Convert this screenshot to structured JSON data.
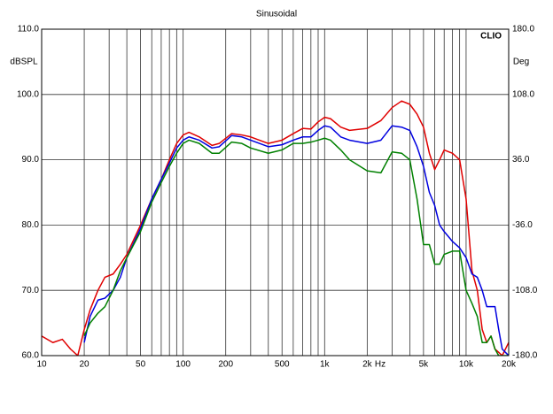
{
  "chart_data": {
    "type": "line",
    "title": "Sinusoidal",
    "ylabel": "dBSPL",
    "y2label": "Deg",
    "xlabel": "Hz",
    "brand": "CLIO",
    "xscale": "log",
    "xlim": [
      10,
      20000
    ],
    "ylim": [
      60,
      110
    ],
    "y2lim": [
      -180,
      180
    ],
    "grid": true,
    "xticks": [
      10,
      20,
      50,
      100,
      200,
      500,
      {
        "value": 1000,
        "label": "1k"
      },
      {
        "value": 2000,
        "label": "2k"
      },
      {
        "value": 5000,
        "label": "5k"
      },
      {
        "value": 10000,
        "label": "10k"
      },
      {
        "value": 20000,
        "label": "20k"
      }
    ],
    "xgrid": [
      20,
      30,
      40,
      50,
      60,
      70,
      80,
      90,
      100,
      200,
      300,
      400,
      500,
      600,
      700,
      800,
      900,
      1000,
      2000,
      3000,
      4000,
      5000,
      6000,
      7000,
      8000,
      9000,
      10000
    ],
    "yticks": [
      {
        "value": 60,
        "label": "60.0"
      },
      {
        "value": 70,
        "label": "70.0"
      },
      {
        "value": 80,
        "label": "80.0"
      },
      {
        "value": 90,
        "label": "90.0"
      },
      {
        "value": 100,
        "label": "100.0"
      },
      {
        "value": 110,
        "label": "110.0"
      }
    ],
    "y2ticks": [
      {
        "value": -180,
        "label": "-180.0"
      },
      {
        "value": -108,
        "label": "-108.0"
      },
      {
        "value": -36,
        "label": "-36.0"
      },
      {
        "value": 36,
        "label": "36.0"
      },
      {
        "value": 108,
        "label": "108.0"
      },
      {
        "value": 180,
        "label": "180.0"
      }
    ],
    "x": [
      10,
      12,
      14,
      16,
      18,
      20,
      22,
      25,
      28,
      32,
      36,
      40,
      50,
      60,
      70,
      80,
      90,
      100,
      110,
      130,
      160,
      180,
      220,
      260,
      300,
      400,
      500,
      600,
      700,
      800,
      900,
      1000,
      1100,
      1300,
      1500,
      2000,
      2500,
      3000,
      3500,
      4000,
      4500,
      5000,
      5500,
      6000,
      6500,
      7000,
      8000,
      9000,
      10000,
      11000,
      12000,
      13000,
      14000,
      15000,
      16000,
      17000,
      18000,
      20000
    ],
    "series": [
      {
        "color": "#e00000",
        "values": [
          63,
          62,
          62.5,
          61,
          60,
          64,
          67,
          70,
          72,
          72.5,
          74,
          75.5,
          80,
          84,
          87,
          90,
          92.5,
          93.8,
          94.2,
          93.5,
          92.2,
          92.5,
          94,
          93.8,
          93.5,
          92.5,
          93,
          94,
          94.8,
          94.7,
          95.8,
          96.5,
          96.3,
          95,
          94.5,
          94.8,
          96,
          98,
          99,
          98.5,
          97,
          95,
          91,
          88.5,
          90,
          91.5,
          91,
          90,
          84,
          73,
          70,
          64,
          62,
          63,
          61,
          60.5,
          60,
          62
        ]
      },
      {
        "color": "#0000e0",
        "values": [
          null,
          null,
          null,
          null,
          null,
          62,
          66,
          68.5,
          68.8,
          70,
          72,
          75,
          79.5,
          84,
          87,
          89.5,
          91.8,
          93,
          93.5,
          93,
          91.8,
          92,
          93.7,
          93.5,
          93,
          92,
          92.3,
          93,
          93.5,
          93.5,
          94.5,
          95.2,
          95,
          93.5,
          93,
          92.5,
          93,
          95.2,
          95,
          94.5,
          92,
          89,
          85,
          83,
          80,
          79,
          77.5,
          76.5,
          75,
          72.5,
          72,
          70,
          67.5,
          67.5,
          67.5,
          64,
          61,
          60
        ]
      },
      {
        "color": "#008000",
        "values": [
          null,
          null,
          null,
          null,
          null,
          63,
          65,
          66.5,
          67.5,
          70,
          73,
          75,
          79,
          83.5,
          86.5,
          89,
          91,
          92.5,
          93,
          92.5,
          91,
          91,
          92.7,
          92.5,
          91.8,
          91,
          91.5,
          92.5,
          92.5,
          92.7,
          93,
          93.3,
          93,
          91.5,
          90,
          88.3,
          88,
          91.2,
          91,
          90,
          84,
          77,
          77,
          74,
          74,
          75.5,
          76,
          76,
          70,
          68,
          66,
          62,
          62,
          63,
          61,
          60,
          60,
          60
        ]
      }
    ]
  }
}
